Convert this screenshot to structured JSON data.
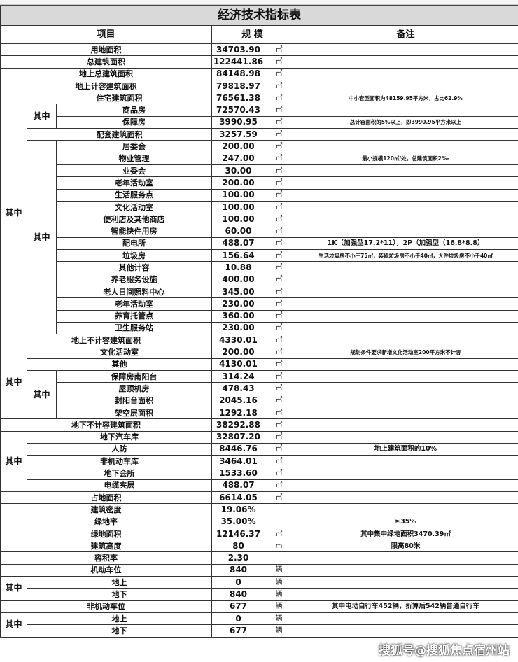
{
  "title": "经济技术指标表",
  "headers": {
    "item": "项目",
    "scale": "规 模",
    "note": "备注"
  },
  "group_label": "其中",
  "rows": [
    {
      "label": "用地面积",
      "value": "34703.90",
      "unit": "㎡"
    },
    {
      "label": "总建筑面积",
      "value": "122441.86",
      "unit": "㎡"
    },
    {
      "label": "地上总建筑面积",
      "value": "84148.98",
      "unit": "㎡"
    },
    {
      "label": "地上计容建筑面积",
      "value": "79818.97",
      "unit": "㎡"
    },
    {
      "group": "其中",
      "children": [
        {
          "label": "住宅建筑面积",
          "value": "76561.38",
          "unit": "㎡",
          "note": "中小套型面积为48159.95平方米，占比62.9%",
          "small": true
        },
        {
          "group": "其中",
          "children": [
            {
              "label": "商品房",
              "value": "72570.43",
              "unit": "㎡"
            },
            {
              "label": "保障房",
              "value": "3990.95",
              "unit": "㎡",
              "note": "总计容面积的5%以上，即3990.95平方米以上",
              "small": true
            }
          ]
        },
        {
          "label": "配套建筑面积",
          "value": "3257.59",
          "unit": "㎡"
        },
        {
          "group": "其中",
          "children": [
            {
              "label": "居委会",
              "value": "200.00",
              "unit": "㎡"
            },
            {
              "label": "物业管理",
              "value": "247.00",
              "unit": "㎡",
              "note": "最小规模120㎡/处，总建筑面积2‰",
              "small": true
            },
            {
              "label": "业委会",
              "value": "30.00",
              "unit": "㎡"
            },
            {
              "label": "老年活动室",
              "value": "200.00",
              "unit": "㎡"
            },
            {
              "label": "生活服务点",
              "value": "100.00",
              "unit": "㎡"
            },
            {
              "label": "文化活动室",
              "value": "100.00",
              "unit": "㎡"
            },
            {
              "label": "便利店及其他商店",
              "value": "100.00",
              "unit": "㎡"
            },
            {
              "label": "智能快件用房",
              "value": "60.00",
              "unit": "㎡"
            },
            {
              "label": "配电所",
              "value": "488.07",
              "unit": "㎡",
              "note": "1K（加强型17.2*11），2P（加强型（16.8*8.8）"
            },
            {
              "label": "垃圾房",
              "value": "156.64",
              "unit": "㎡",
              "note": "生活垃圾房不小于75㎡，装修垃圾房不小于40㎡，大件垃圾房不小于40㎡",
              "small": true
            },
            {
              "label": "其他计容",
              "value": "10.88",
              "unit": "㎡"
            },
            {
              "label": "养老服务设施",
              "value": "400.00",
              "unit": "㎡"
            },
            {
              "label": "老人日间照料中心",
              "value": "345.00",
              "unit": "㎡"
            },
            {
              "label": "老年活动室",
              "value": "230.00",
              "unit": "㎡"
            },
            {
              "label": "养育托管点",
              "value": "360.00",
              "unit": "㎡"
            },
            {
              "label": "卫生服务站",
              "value": "230.00",
              "unit": "㎡"
            }
          ]
        }
      ]
    },
    {
      "label": "地上不计容建筑面积",
      "value": "4330.01",
      "unit": "㎡"
    },
    {
      "group": "其中",
      "children": [
        {
          "label": "文化活动室",
          "value": "200.00",
          "unit": "㎡",
          "note": "规划条件要求新增文化活动室200平方米不计容",
          "small": true
        },
        {
          "label": "其他",
          "value": "4130.01",
          "unit": "㎡"
        },
        {
          "group": "其中",
          "children": [
            {
              "label": "保障房南阳台",
              "value": "314.24",
              "unit": "㎡"
            },
            {
              "label": "屋顶机房",
              "value": "478.43",
              "unit": "㎡"
            },
            {
              "label": "封阳台面积",
              "value": "2045.16",
              "unit": "㎡"
            },
            {
              "label": "架空层面积",
              "value": "1292.18",
              "unit": "㎡"
            }
          ]
        }
      ]
    },
    {
      "label": "地下不计容建筑面积",
      "value": "38292.88",
      "unit": "㎡"
    },
    {
      "group": "其中",
      "children": [
        {
          "label": "地下汽车库",
          "value": "32807.20",
          "unit": "㎡"
        },
        {
          "label": "人防",
          "value": "8446.76",
          "unit": "㎡",
          "note": "地上建筑面积的10%"
        },
        {
          "label": "非机动车库",
          "value": "3464.01",
          "unit": "㎡"
        },
        {
          "label": "地下会所",
          "value": "1533.60",
          "unit": "㎡"
        },
        {
          "label": "电缆夹层",
          "value": "488.07",
          "unit": "㎡"
        }
      ]
    },
    {
      "label": "占地面积",
      "value": "6614.05",
      "unit": "㎡"
    },
    {
      "label": "建筑密度",
      "value": "19.06%",
      "unit": ""
    },
    {
      "label": "绿地率",
      "value": "35.00%",
      "unit": "",
      "note": "≥35%"
    },
    {
      "label": "绿地面积",
      "value": "12146.37",
      "unit": "㎡",
      "note": "其中集中绿地面积3470.39㎡"
    },
    {
      "label": "建筑高度",
      "value": "80",
      "unit": "m",
      "note": "限高80米"
    },
    {
      "label": "容积率",
      "value": "2.30",
      "unit": ""
    },
    {
      "label": "机动车位",
      "value": "840",
      "unit": "辆"
    },
    {
      "group": "其中",
      "children": [
        {
          "label": "地上",
          "value": "0",
          "unit": "辆"
        },
        {
          "label": "地下",
          "value": "840",
          "unit": "辆"
        }
      ]
    },
    {
      "label": "非机动车位",
      "value": "677",
      "unit": "辆",
      "note": "其中电动自行车452辆，折算后542辆普通自行车"
    },
    {
      "group": "其中",
      "children": [
        {
          "label": "地上",
          "value": "0",
          "unit": "辆"
        },
        {
          "label": "地下",
          "value": "677",
          "unit": "辆"
        }
      ]
    }
  ],
  "watermark": "搜狐号@搜狐焦点宿州站"
}
